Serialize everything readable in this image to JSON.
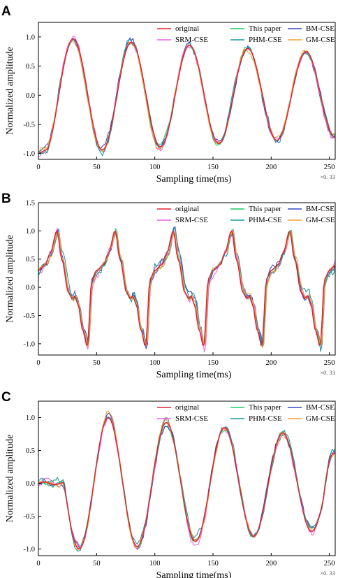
{
  "chart_data": [
    {
      "panel": "A",
      "type": "line",
      "xlabel": "Sampling time(ms)",
      "ylabel": "Normalized amplitude",
      "x_scale_note": "×0. 33",
      "xlim": [
        0,
        255
      ],
      "ylim": [
        -1.1,
        1.25
      ],
      "xticks": [
        0,
        50,
        100,
        150,
        200,
        250
      ],
      "yticks": [
        "-1.0",
        "-0.5",
        "0.0",
        "0.5",
        "1.0"
      ],
      "legend_position": "top-right",
      "series": [
        {
          "name": "original",
          "color": "#e8202a",
          "noise": 0
        },
        {
          "name": "This paper",
          "color": "#1ec864",
          "noise": 0.035
        },
        {
          "name": "BM-CSE",
          "color": "#3246c8",
          "noise": 0.05
        },
        {
          "name": "SRM-CSE",
          "color": "#f060e8",
          "noise": 0.05
        },
        {
          "name": "PHM-CSE",
          "color": "#1a9a9a",
          "noise": 0.06
        },
        {
          "name": "GM-CSE",
          "color": "#f5a030",
          "noise": 0.045
        }
      ],
      "reference": {
        "kind": "damped_sine",
        "period": 50,
        "peak_x": 30,
        "peak_y": 1.0,
        "end_amplitude": 0.72,
        "start_y": -1.0
      }
    },
    {
      "panel": "B",
      "type": "line",
      "xlabel": "Sampling time(ms)",
      "ylabel": "Normalized amplitude",
      "x_scale_note": "×0. 33",
      "xlim": [
        0,
        255
      ],
      "ylim": [
        -1.2,
        1.5
      ],
      "xticks": [
        0,
        50,
        100,
        150,
        200,
        250
      ],
      "yticks": [
        "-1.0",
        "-0.5",
        "0.0",
        "0.5",
        "1.0",
        "1.5"
      ],
      "legend_position": "top-right",
      "series": [
        {
          "name": "original",
          "color": "#e8202a",
          "noise": 0
        },
        {
          "name": "This paper",
          "color": "#1ec864",
          "noise": 0.04
        },
        {
          "name": "BM-CSE",
          "color": "#3246c8",
          "noise": 0.06
        },
        {
          "name": "SRM-CSE",
          "color": "#f060e8",
          "noise": 0.07
        },
        {
          "name": "PHM-CSE",
          "color": "#1a9a9a",
          "noise": 0.08
        },
        {
          "name": "GM-CSE",
          "color": "#f5a030",
          "noise": 0.05
        }
      ],
      "reference": {
        "kind": "periodic_keypoints",
        "period": 50,
        "first_cycle_start": -4,
        "keypoints_x": [
          0,
          4,
          10,
          14,
          20,
          24,
          30,
          33,
          35,
          38,
          42,
          46,
          50
        ],
        "keypoints_y": [
          0.15,
          0.3,
          0.4,
          0.6,
          1.0,
          0.5,
          -0.1,
          -0.2,
          -0.15,
          -0.3,
          -0.75,
          -1.05,
          0.15
        ]
      }
    },
    {
      "panel": "C",
      "type": "line",
      "xlabel": "Sampling time(ms)",
      "ylabel": "Normalized amplitude",
      "x_scale_note": "×0. 33",
      "xlim": [
        0,
        255
      ],
      "ylim": [
        -1.1,
        1.25
      ],
      "xticks": [
        0,
        50,
        100,
        150,
        200,
        250
      ],
      "yticks": [
        "-1.0",
        "-0.5",
        "0.0",
        "0.5",
        "1.0"
      ],
      "legend_position": "top-right",
      "series": [
        {
          "name": "original",
          "color": "#e8202a",
          "noise": 0
        },
        {
          "name": "This paper",
          "color": "#1ec864",
          "noise": 0.035
        },
        {
          "name": "BM-CSE",
          "color": "#3246c8",
          "noise": 0.05
        },
        {
          "name": "SRM-CSE",
          "color": "#f060e8",
          "noise": 0.05
        },
        {
          "name": "PHM-CSE",
          "color": "#1a9a9a",
          "noise": 0.06
        },
        {
          "name": "GM-CSE",
          "color": "#f5a030",
          "noise": 0.045
        }
      ],
      "reference": {
        "kind": "delayed_sine",
        "flat_until": 22,
        "period": 50,
        "peak_x": 60,
        "trough_x": 35,
        "peak_y": 1.0,
        "trough_y": -1.0,
        "end_amplitude": 0.7,
        "end_y": 0.45
      }
    }
  ]
}
